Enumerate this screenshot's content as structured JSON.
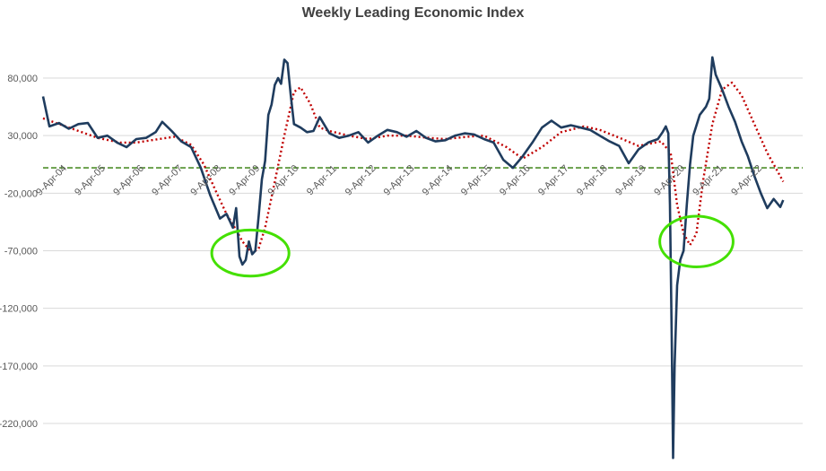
{
  "chart_data": {
    "type": "line",
    "title": "Weekly Leading Economic Index",
    "ylim": [
      -250000,
      110000
    ],
    "y_ticks": [
      80000,
      30000,
      -20000,
      -70000,
      -120000,
      -170000,
      -220000
    ],
    "y_tick_labels": [
      "80,000",
      "30,000",
      "-20,000",
      "-70,000",
      "-120,000",
      "-170,000",
      "-220,000"
    ],
    "x_range": [
      "2004-01-01",
      "2023-09-01"
    ],
    "x_ticks": [
      "2004-04-09",
      "2005-04-09",
      "2006-04-09",
      "2007-04-09",
      "2008-04-09",
      "2009-04-09",
      "2010-04-09",
      "2011-04-09",
      "2012-04-09",
      "2013-04-09",
      "2014-04-09",
      "2015-04-09",
      "2016-04-09",
      "2017-04-09",
      "2018-04-09",
      "2019-04-09",
      "2020-04-09",
      "2021-04-09",
      "2022-04-09"
    ],
    "x_tick_labels": [
      "9-Apr-04",
      "9-Apr-05",
      "9-Apr-06",
      "9-Apr-07",
      "9-Apr-08",
      "9-Apr-09",
      "9-Apr-10",
      "9-Apr-11",
      "9-Apr-12",
      "9-Apr-13",
      "9-Apr-14",
      "9-Apr-15",
      "9-Apr-16",
      "9-Apr-17",
      "9-Apr-18",
      "9-Apr-19",
      "9-Apr-20",
      "9-Apr-21",
      "9-Apr-22"
    ],
    "grid": "horizontal",
    "legend": "none",
    "series": [
      {
        "style": "solid",
        "color": "#1f3c5e",
        "points": [
          [
            "2004-01-01",
            64000
          ],
          [
            "2004-03-01",
            38000
          ],
          [
            "2004-06-01",
            41000
          ],
          [
            "2004-09-01",
            36000
          ],
          [
            "2004-12-01",
            40000
          ],
          [
            "2005-03-01",
            41000
          ],
          [
            "2005-06-01",
            28000
          ],
          [
            "2005-09-01",
            30000
          ],
          [
            "2005-12-01",
            24000
          ],
          [
            "2006-03-01",
            20000
          ],
          [
            "2006-06-01",
            27000
          ],
          [
            "2006-09-01",
            28000
          ],
          [
            "2006-12-01",
            33000
          ],
          [
            "2007-02-01",
            42000
          ],
          [
            "2007-05-01",
            34000
          ],
          [
            "2007-08-01",
            25000
          ],
          [
            "2007-11-01",
            20000
          ],
          [
            "2008-02-01",
            2000
          ],
          [
            "2008-05-01",
            -22000
          ],
          [
            "2008-08-01",
            -42000
          ],
          [
            "2008-10-01",
            -38000
          ],
          [
            "2008-12-01",
            -50000
          ],
          [
            "2009-01-01",
            -33000
          ],
          [
            "2009-02-01",
            -75000
          ],
          [
            "2009-03-01",
            -82000
          ],
          [
            "2009-04-01",
            -78000
          ],
          [
            "2009-05-01",
            -62000
          ],
          [
            "2009-06-01",
            -73000
          ],
          [
            "2009-07-01",
            -70000
          ],
          [
            "2009-08-01",
            -40000
          ],
          [
            "2009-09-01",
            -8000
          ],
          [
            "2009-10-01",
            8000
          ],
          [
            "2009-11-01",
            48000
          ],
          [
            "2009-12-01",
            57000
          ],
          [
            "2010-01-01",
            74000
          ],
          [
            "2010-02-01",
            80000
          ],
          [
            "2010-03-01",
            75000
          ],
          [
            "2010-04-01",
            96000
          ],
          [
            "2010-05-01",
            93000
          ],
          [
            "2010-06-01",
            65000
          ],
          [
            "2010-07-01",
            40000
          ],
          [
            "2010-09-01",
            37000
          ],
          [
            "2010-11-01",
            33000
          ],
          [
            "2011-01-01",
            34000
          ],
          [
            "2011-03-01",
            46000
          ],
          [
            "2011-06-01",
            32000
          ],
          [
            "2011-09-01",
            28000
          ],
          [
            "2011-12-01",
            30000
          ],
          [
            "2012-03-01",
            33000
          ],
          [
            "2012-06-01",
            24000
          ],
          [
            "2012-09-01",
            30000
          ],
          [
            "2012-12-01",
            35000
          ],
          [
            "2013-03-01",
            33000
          ],
          [
            "2013-06-01",
            29000
          ],
          [
            "2013-09-01",
            34000
          ],
          [
            "2013-12-01",
            28000
          ],
          [
            "2014-03-01",
            25000
          ],
          [
            "2014-06-01",
            26000
          ],
          [
            "2014-09-01",
            30000
          ],
          [
            "2014-12-01",
            32000
          ],
          [
            "2015-03-01",
            31000
          ],
          [
            "2015-06-01",
            27000
          ],
          [
            "2015-09-01",
            24000
          ],
          [
            "2015-12-01",
            9000
          ],
          [
            "2016-03-01",
            2000
          ],
          [
            "2016-06-01",
            12000
          ],
          [
            "2016-09-01",
            24000
          ],
          [
            "2016-12-01",
            37000
          ],
          [
            "2017-03-01",
            43000
          ],
          [
            "2017-06-01",
            37000
          ],
          [
            "2017-09-01",
            39000
          ],
          [
            "2017-12-01",
            37000
          ],
          [
            "2018-03-01",
            35000
          ],
          [
            "2018-06-01",
            30000
          ],
          [
            "2018-09-01",
            25000
          ],
          [
            "2018-12-01",
            21000
          ],
          [
            "2019-03-01",
            6000
          ],
          [
            "2019-06-01",
            18000
          ],
          [
            "2019-09-01",
            24000
          ],
          [
            "2019-12-01",
            27000
          ],
          [
            "2020-01-15",
            33000
          ],
          [
            "2020-02-15",
            38000
          ],
          [
            "2020-03-10",
            32000
          ],
          [
            "2020-03-25",
            -30000
          ],
          [
            "2020-04-10",
            -140000
          ],
          [
            "2020-04-24",
            -250000
          ],
          [
            "2020-05-08",
            -170000
          ],
          [
            "2020-06-01",
            -100000
          ],
          [
            "2020-07-01",
            -78000
          ],
          [
            "2020-08-01",
            -70000
          ],
          [
            "2020-09-01",
            -30000
          ],
          [
            "2020-10-01",
            5000
          ],
          [
            "2020-11-01",
            30000
          ],
          [
            "2021-01-01",
            48000
          ],
          [
            "2021-03-01",
            55000
          ],
          [
            "2021-04-01",
            62000
          ],
          [
            "2021-05-01",
            98000
          ],
          [
            "2021-06-01",
            83000
          ],
          [
            "2021-08-01",
            70000
          ],
          [
            "2021-10-01",
            55000
          ],
          [
            "2021-12-01",
            42000
          ],
          [
            "2022-02-01",
            25000
          ],
          [
            "2022-04-01",
            12000
          ],
          [
            "2022-06-01",
            -5000
          ],
          [
            "2022-08-01",
            -20000
          ],
          [
            "2022-10-01",
            -33000
          ],
          [
            "2022-12-01",
            -25000
          ],
          [
            "2023-02-01",
            -32000
          ],
          [
            "2023-03-01",
            -26000
          ]
        ]
      },
      {
        "style": "dotted",
        "color": "#c00000",
        "points": [
          [
            "2004-01-01",
            45000
          ],
          [
            "2004-06-01",
            40000
          ],
          [
            "2005-01-01",
            33000
          ],
          [
            "2005-06-01",
            28000
          ],
          [
            "2006-01-01",
            24000
          ],
          [
            "2006-06-01",
            24000
          ],
          [
            "2007-01-01",
            27000
          ],
          [
            "2007-06-01",
            29000
          ],
          [
            "2007-11-01",
            22000
          ],
          [
            "2008-03-01",
            5000
          ],
          [
            "2008-07-01",
            -20000
          ],
          [
            "2008-10-01",
            -38000
          ],
          [
            "2009-01-01",
            -52000
          ],
          [
            "2009-03-01",
            -62000
          ],
          [
            "2009-06-01",
            -72000
          ],
          [
            "2009-08-01",
            -68000
          ],
          [
            "2009-10-01",
            -50000
          ],
          [
            "2010-01-01",
            -10000
          ],
          [
            "2010-04-01",
            30000
          ],
          [
            "2010-07-01",
            68000
          ],
          [
            "2010-09-01",
            72000
          ],
          [
            "2010-12-01",
            58000
          ],
          [
            "2011-03-01",
            37000
          ],
          [
            "2011-06-01",
            34000
          ],
          [
            "2011-12-01",
            30000
          ],
          [
            "2012-06-01",
            27000
          ],
          [
            "2012-12-01",
            30000
          ],
          [
            "2013-06-01",
            30000
          ],
          [
            "2014-01-01",
            28000
          ],
          [
            "2014-06-01",
            27000
          ],
          [
            "2015-01-01",
            29000
          ],
          [
            "2015-06-01",
            30000
          ],
          [
            "2016-01-01",
            20000
          ],
          [
            "2016-06-01",
            10000
          ],
          [
            "2016-12-01",
            20000
          ],
          [
            "2017-06-01",
            33000
          ],
          [
            "2018-01-01",
            38000
          ],
          [
            "2018-06-01",
            35000
          ],
          [
            "2019-01-01",
            27000
          ],
          [
            "2019-06-01",
            21000
          ],
          [
            "2020-01-01",
            25000
          ],
          [
            "2020-04-01",
            15000
          ],
          [
            "2020-06-01",
            -30000
          ],
          [
            "2020-08-01",
            -55000
          ],
          [
            "2020-10-01",
            -65000
          ],
          [
            "2020-12-01",
            -55000
          ],
          [
            "2021-02-01",
            -10000
          ],
          [
            "2021-05-01",
            40000
          ],
          [
            "2021-08-01",
            70000
          ],
          [
            "2021-11-01",
            76000
          ],
          [
            "2022-02-01",
            65000
          ],
          [
            "2022-06-01",
            40000
          ],
          [
            "2022-10-01",
            15000
          ],
          [
            "2023-01-01",
            0
          ],
          [
            "2023-03-01",
            -10000
          ]
        ]
      },
      {
        "style": "dashed",
        "color": "#4e8f2a",
        "points": [
          [
            "2004-01-01",
            2000
          ],
          [
            "2023-09-01",
            2000
          ]
        ]
      }
    ],
    "annotations": [
      {
        "type": "ellipse",
        "color": "#44e000",
        "center": [
          "2009-05-15",
          -72000
        ],
        "rx_years": 1.0,
        "ry": 20000
      },
      {
        "type": "ellipse",
        "color": "#44e000",
        "center": [
          "2020-12-01",
          -62000
        ],
        "rx_years": 0.95,
        "ry": 22000
      }
    ]
  }
}
